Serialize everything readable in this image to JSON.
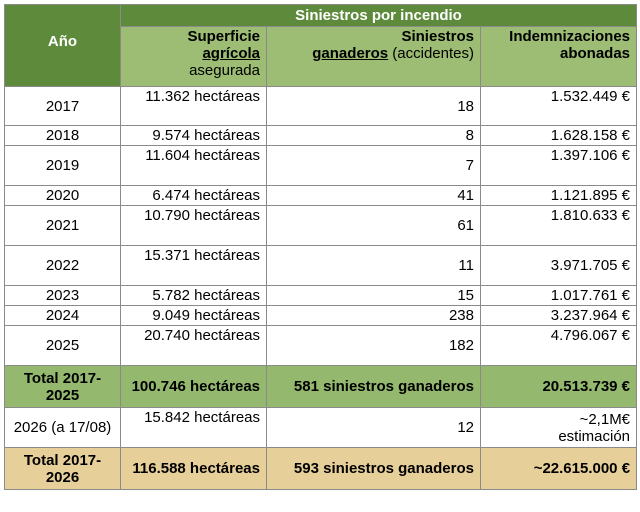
{
  "headers": {
    "group": "Siniestros por incendio",
    "year": "Año",
    "area_line1": "Superficie",
    "area_line2": "agrícola",
    "area_line3": "asegurada",
    "claims_line1": "Siniestros",
    "claims_line2_bold": "ganaderos",
    "claims_line2_rest": " (accidentes)",
    "comp_line1": "Indemnizaciones",
    "comp_line2": "abonadas"
  },
  "rows": [
    {
      "year": "2017",
      "area": "11.362 hectáreas",
      "claims": "18",
      "comp": "1.532.449 €"
    },
    {
      "year": "2018",
      "area": "9.574 hectáreas",
      "claims": "8",
      "comp": "1.628.158 €"
    },
    {
      "year": "2019",
      "area": "11.604 hectáreas",
      "claims": "7",
      "comp": "1.397.106 €"
    },
    {
      "year": "2020",
      "area": "6.474 hectáreas",
      "claims": "41",
      "comp": "1.121.895 €"
    },
    {
      "year": "2021",
      "area": "10.790 hectáreas",
      "claims": "61",
      "comp": "1.810.633 €"
    },
    {
      "year": "2022",
      "area": "15.371 hectáreas",
      "claims": "11",
      "comp": "3.971.705 €"
    },
    {
      "year": "2023",
      "area": "5.782 hectáreas",
      "claims": "15",
      "comp": "1.017.761 €"
    },
    {
      "year": "2024",
      "area": "9.049 hectáreas",
      "claims": "238",
      "comp": "3.237.964 €"
    },
    {
      "year": "2025",
      "area": "20.740 hectáreas",
      "claims": "182",
      "comp": "4.796.067 €"
    }
  ],
  "total1": {
    "year": "Total 2017-2025",
    "area": "100.746 hectáreas",
    "claims": "581 siniestros ganaderos",
    "comp": "20.513.739 €"
  },
  "row2026": {
    "year": "2026 (a 17/08)",
    "area": "15.842 hectáreas",
    "claims": "12",
    "comp": "~2,1M€ estimación"
  },
  "total2": {
    "year": "Total 2017-2026",
    "area": "116.588 hectáreas",
    "claims": "593 siniestros ganaderos",
    "comp": "~22.615.000 €"
  }
}
